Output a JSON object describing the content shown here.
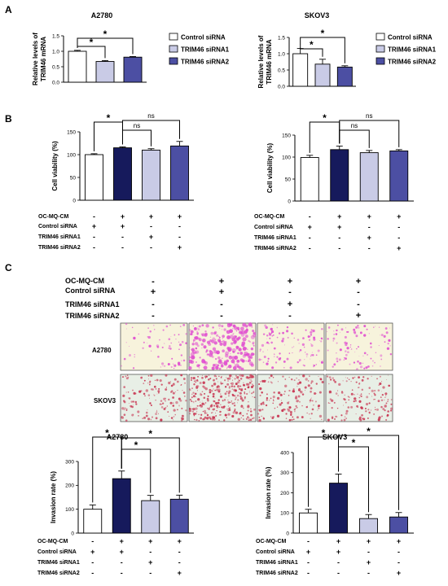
{
  "panels": {
    "A": "A",
    "B": "B",
    "C": "C"
  },
  "colors": {
    "control": "#ffffff",
    "siRNA1": "#c9cbe6",
    "siRNA2": "#4c4fa3",
    "omq": "#161a5c",
    "a2780_stain": "#e04fd0",
    "skov3_stain": "#c8324f"
  },
  "legend": [
    "Control siRNA",
    "TRIM46 siRNA1",
    "TRIM46 siRNA2"
  ],
  "condition_labels": [
    "OC-MQ-CM",
    "Control siRNA",
    "TRIM46 siRNA1",
    "TRIM46 siRNA2"
  ],
  "condition_signs": [
    [
      "-",
      "+",
      "+",
      "+"
    ],
    [
      "+",
      "+",
      "-",
      "-"
    ],
    [
      "-",
      "-",
      "+",
      "-"
    ],
    [
      "-",
      "-",
      "-",
      "+"
    ]
  ],
  "images": {
    "rows": [
      "A2780",
      "SKOV3"
    ],
    "signs": [
      [
        "-",
        "+",
        "+",
        "+"
      ],
      [
        "+",
        "+",
        "-",
        "-"
      ],
      [
        "-",
        "-",
        "+",
        "-"
      ],
      [
        "-",
        "-",
        "-",
        "+"
      ]
    ]
  },
  "chart_data": [
    {
      "id": "A-left",
      "type": "bar",
      "title": "A2780",
      "ylabel": "Relative levels of TRIM46 mRNA",
      "categories": [
        "Control siRNA",
        "TRIM46 siRNA1",
        "TRIM46 siRNA2"
      ],
      "values": [
        1.0,
        0.67,
        0.81
      ],
      "errors": [
        0.03,
        0.03,
        0.02
      ],
      "ylim": [
        0,
        1.5
      ],
      "yticks": [
        "0.0",
        "0.5",
        "1.0",
        "1.5"
      ],
      "colors": [
        "#ffffff",
        "#c9cbe6",
        "#4c4fa3"
      ],
      "annotations": [
        {
          "from": 0,
          "to": 1,
          "label": "*"
        },
        {
          "from": 0,
          "to": 2,
          "label": "*"
        }
      ]
    },
    {
      "id": "A-right",
      "type": "bar",
      "title": "SKOV3",
      "ylabel": "Relative levels of TRIM46 mRNA",
      "categories": [
        "Control siRNA",
        "TRIM46 siRNA1",
        "TRIM46 siRNA2"
      ],
      "values": [
        1.0,
        0.68,
        0.59
      ],
      "errors": [
        0.16,
        0.15,
        0.04
      ],
      "ylim": [
        0,
        1.5
      ],
      "yticks": [
        "0.0",
        "0.5",
        "1.0",
        "1.5"
      ],
      "colors": [
        "#ffffff",
        "#c9cbe6",
        "#4c4fa3"
      ],
      "annotations": [
        {
          "from": 0,
          "to": 1,
          "label": "*"
        },
        {
          "from": 0,
          "to": 2,
          "label": "*"
        }
      ]
    },
    {
      "id": "B-left",
      "type": "bar",
      "ylabel": "Cell viability (%)",
      "values": [
        100,
        115,
        110,
        119
      ],
      "errors": [
        2,
        2,
        3,
        10
      ],
      "ylim": [
        0,
        150
      ],
      "yticks": [
        "0",
        "50",
        "100",
        "150"
      ],
      "colors": [
        "#ffffff",
        "#161a5c",
        "#c9cbe6",
        "#4c4fa3"
      ],
      "annotations": [
        {
          "from": 0,
          "to": 1,
          "label": "*"
        },
        {
          "from": 1,
          "to": 2,
          "label": "ns"
        },
        {
          "from": 1,
          "to": 3,
          "label": "ns"
        }
      ]
    },
    {
      "id": "B-right",
      "type": "bar",
      "ylabel": "Cell viability (%)",
      "values": [
        99,
        117,
        110,
        114
      ],
      "errors": [
        5,
        8,
        5,
        3
      ],
      "ylim": [
        0,
        150
      ],
      "yticks": [
        "0",
        "50",
        "100",
        "150"
      ],
      "colors": [
        "#ffffff",
        "#161a5c",
        "#c9cbe6",
        "#4c4fa3"
      ],
      "annotations": [
        {
          "from": 0,
          "to": 1,
          "label": "*"
        },
        {
          "from": 1,
          "to": 2,
          "label": "ns"
        },
        {
          "from": 1,
          "to": 3,
          "label": "ns"
        }
      ]
    },
    {
      "id": "C-left",
      "type": "bar",
      "title": "A2780",
      "ylabel": "Invasion rate (%)",
      "values": [
        100,
        228,
        136,
        142
      ],
      "errors": [
        18,
        32,
        22,
        17
      ],
      "ylim": [
        0,
        300
      ],
      "yticks": [
        "0",
        "100",
        "200",
        "300"
      ],
      "colors": [
        "#ffffff",
        "#161a5c",
        "#c9cbe6",
        "#4c4fa3"
      ],
      "annotations": [
        {
          "from": 0,
          "to": 1,
          "label": "*"
        },
        {
          "from": 1,
          "to": 2,
          "label": "*"
        },
        {
          "from": 1,
          "to": 3,
          "label": "*"
        }
      ]
    },
    {
      "id": "C-right",
      "type": "bar",
      "title": "SKOV3",
      "ylabel": "Invasion rate (%)",
      "values": [
        100,
        248,
        72,
        80
      ],
      "errors": [
        18,
        45,
        20,
        22
      ],
      "ylim": [
        0,
        400
      ],
      "yticks": [
        "0",
        "100",
        "200",
        "300",
        "400"
      ],
      "colors": [
        "#ffffff",
        "#161a5c",
        "#c9cbe6",
        "#4c4fa3"
      ],
      "annotations": [
        {
          "from": 0,
          "to": 1,
          "label": "*"
        },
        {
          "from": 1,
          "to": 2,
          "label": "*"
        },
        {
          "from": 1,
          "to": 3,
          "label": "*"
        }
      ]
    }
  ]
}
